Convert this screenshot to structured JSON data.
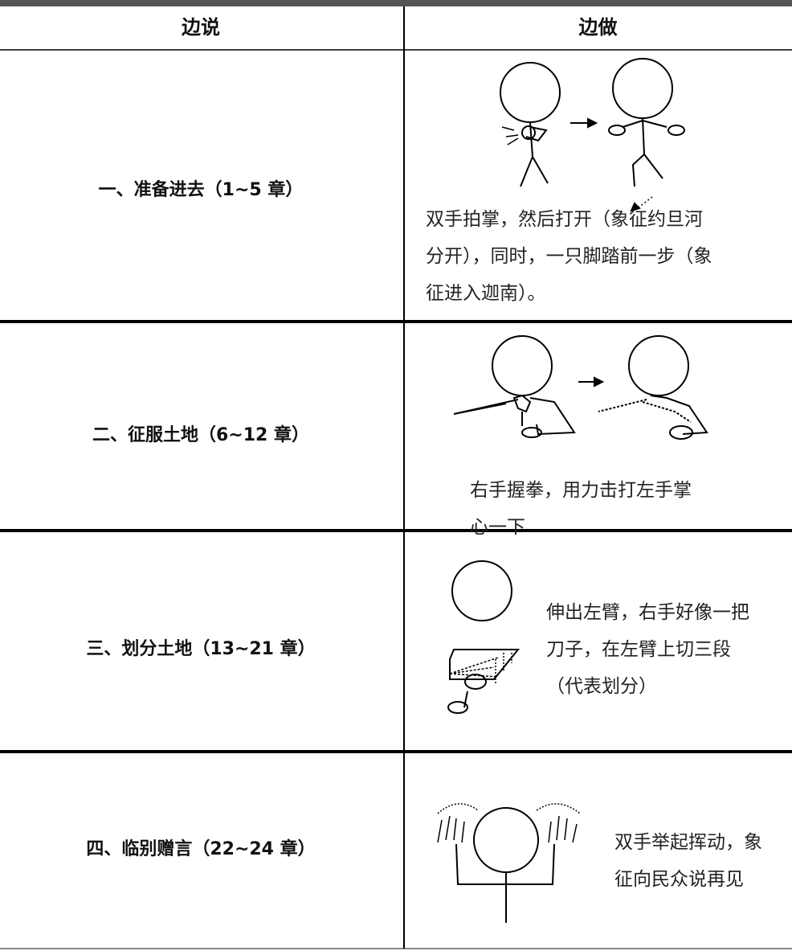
{
  "table": {
    "header": [
      "边说",
      "边做"
    ],
    "rows": [
      {
        "say": "一、准备进去（1~5 章）",
        "do": [
          "双手拍掌，然后打开（象征约旦河",
          "分开），同时，一只脚踏前一步（象",
          "征进入迦南）。"
        ]
      },
      {
        "say": "二、征服土地（6~12 章）",
        "do": [
          "右手握拳，用力击打左手掌",
          "心一下"
        ]
      },
      {
        "say": "三、划分土地（13~21 章）",
        "do": [
          "伸出左臂，右手好像一把",
          "刀子，在左臂上切三段",
          "（代表划分）"
        ]
      },
      {
        "say": "四、临别赠言（22~24 章）",
        "do": [
          "双手举起挥动，象",
          "征向民众说再见"
        ]
      }
    ]
  }
}
